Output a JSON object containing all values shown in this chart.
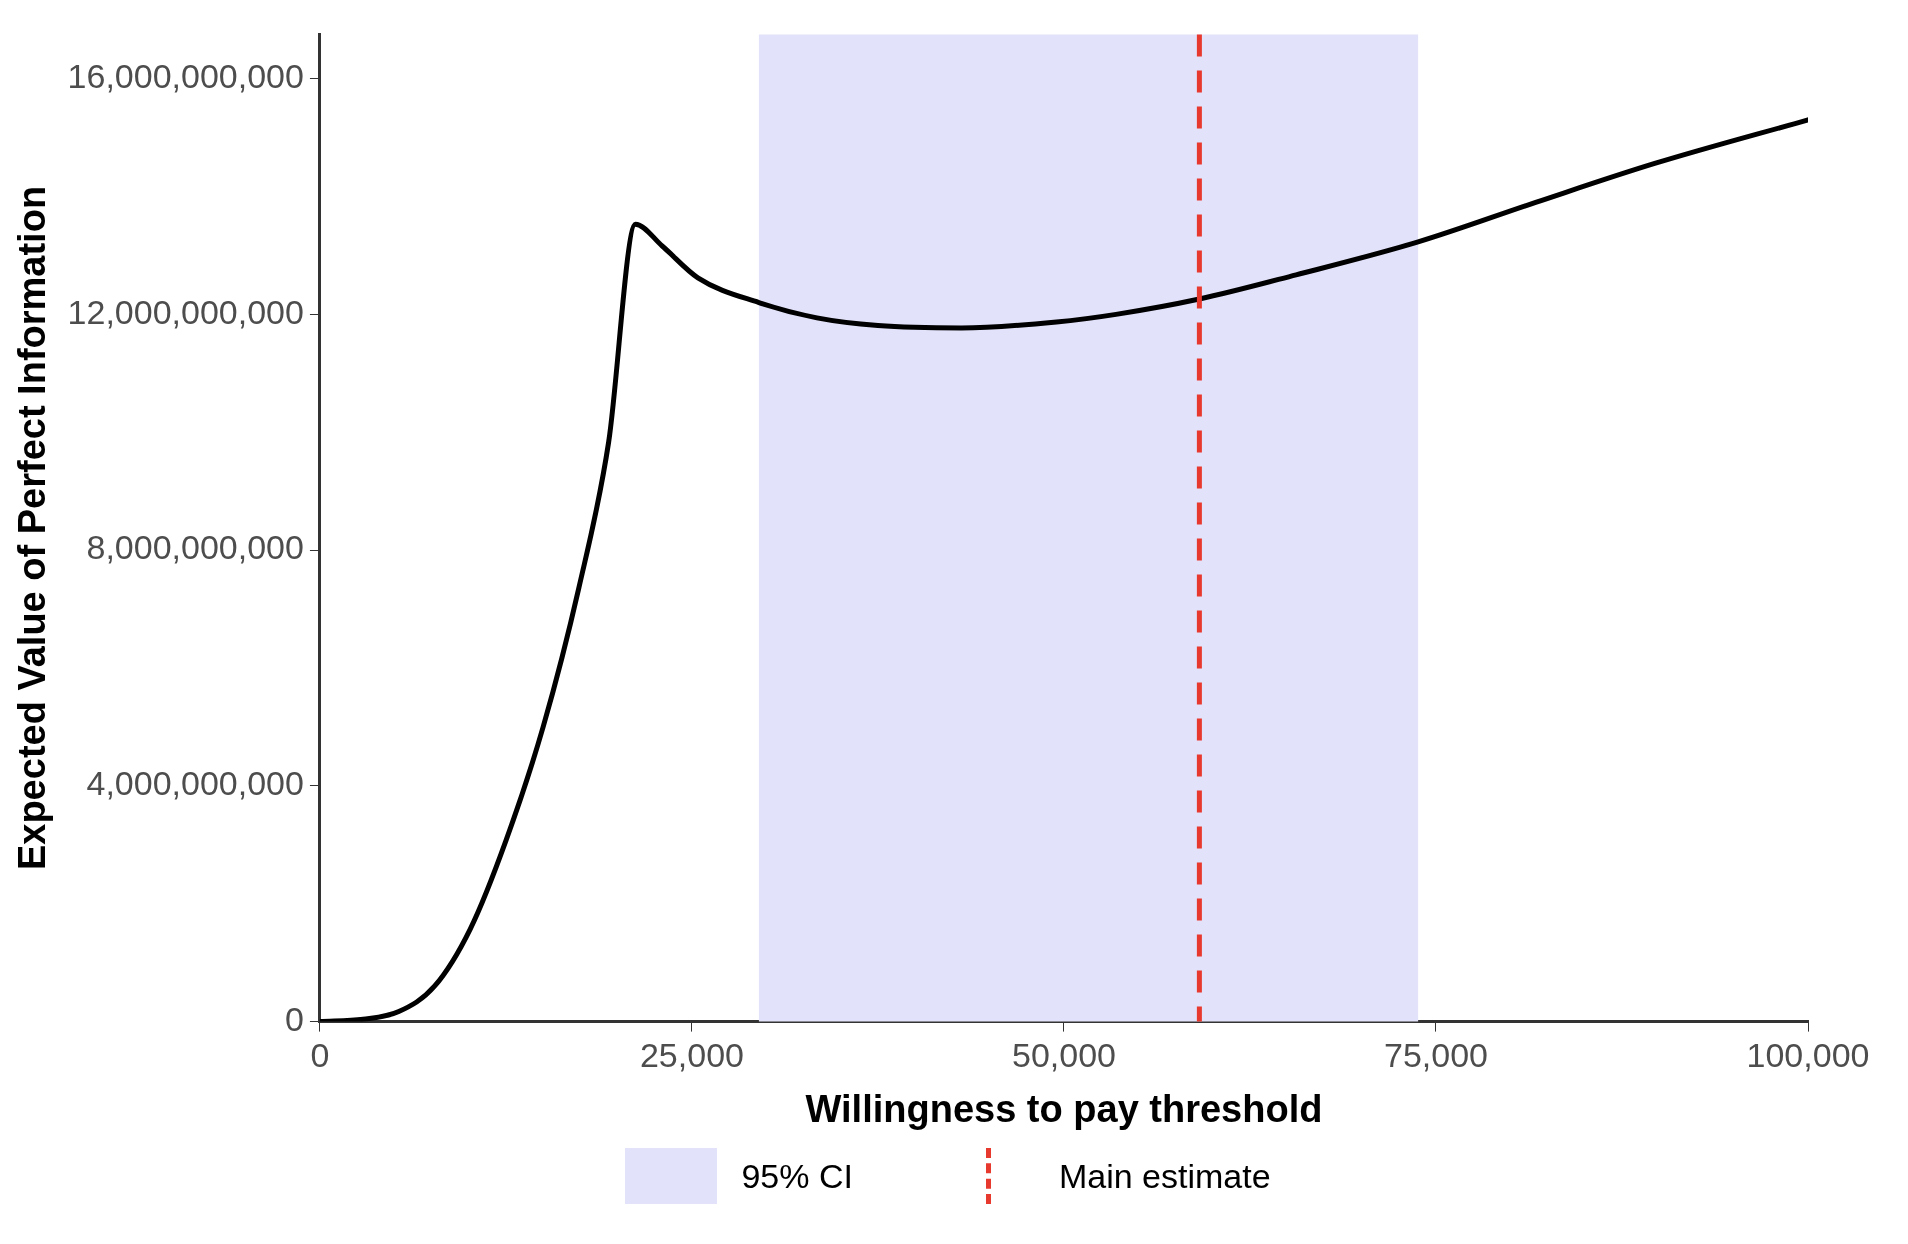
{
  "chart_data": {
    "type": "line",
    "xlabel": "Willingness to pay threshold",
    "ylabel": "Expected Value of Perfect Information",
    "x": [
      0,
      2900,
      5300,
      7700,
      10100,
      12500,
      15000,
      17400,
      19400,
      21200,
      23000,
      25400,
      29500,
      33400,
      37500,
      43100,
      49500,
      53500,
      59100,
      65600,
      73800,
      81700,
      89700,
      100000
    ],
    "series": [
      {
        "color": "#000000",
        "values": [
          0,
          40000000,
          170000000,
          600000000,
          1570000000,
          3070000000,
          5000000000,
          7360000000,
          9830000000,
          13530000000,
          13160000000,
          12620000000,
          12200000000,
          11940000000,
          11810000000,
          11770000000,
          11870000000,
          12000000000,
          12260000000,
          12670000000,
          13230000000,
          13900000000,
          14560000000,
          15300000000
        ]
      }
    ],
    "xlim": [
      0,
      100000
    ],
    "xticks": [
      0,
      {
        "value": 25000,
        "label": "25,000"
      },
      {
        "value": 50000,
        "label": "50,000"
      },
      {
        "value": 75000,
        "label": "75,000"
      },
      {
        "value": 100000,
        "label": "100,000"
      }
    ],
    "ylim": [
      0,
      16750000000
    ],
    "yticks": [
      0,
      {
        "value": 4000000000,
        "label": "4,000,000,000"
      },
      {
        "value": 8000000000,
        "label": "8,000,000,000"
      },
      {
        "value": 12000000000,
        "label": "12,000,000,000"
      },
      {
        "value": 16000000000,
        "label": "16,000,000,000"
      }
    ],
    "bands": [
      {
        "axis": "x",
        "from": 29500,
        "to": 73800,
        "label": "95% CI",
        "color": "#e2e2fa"
      }
    ],
    "ref_lines": [
      {
        "axis": "x",
        "value": 59100,
        "label": "Main estimate",
        "color": "#e8392e",
        "line_style": "dashed"
      }
    ],
    "grid": false,
    "legend": "bottom",
    "marker": "none",
    "line_style": "solid"
  }
}
